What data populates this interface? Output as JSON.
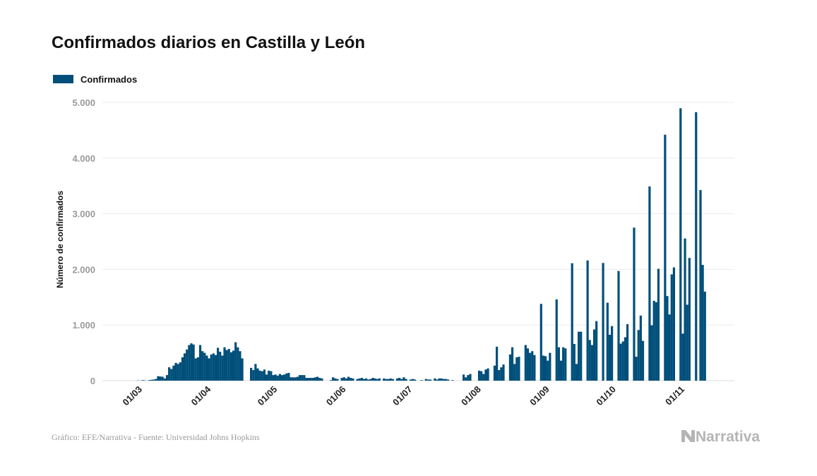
{
  "chart_data": {
    "type": "bar",
    "title": "Confirmados diarios en Castilla y León",
    "ylabel": "Número de confirmados",
    "xlabel": "",
    "legend": {
      "position": "top-left",
      "entries": [
        "Confirmados"
      ]
    },
    "series": [
      {
        "name": "Confirmados",
        "color": "#004f7a"
      }
    ],
    "xlim": [
      "2020-02-24",
      "2020-11-10"
    ],
    "ylim": [
      0,
      5000
    ],
    "grid": true,
    "y_ticks": [
      {
        "value": 0,
        "label": "0"
      },
      {
        "value": 1000,
        "label": "1.000"
      },
      {
        "value": 2000,
        "label": "2.000"
      },
      {
        "value": 3000,
        "label": "3.000"
      },
      {
        "value": 4000,
        "label": "4.000"
      },
      {
        "value": 5000,
        "label": "5.000"
      }
    ],
    "x_ticks": [
      {
        "date": "2020-03-01",
        "label": "01/03"
      },
      {
        "date": "2020-04-01",
        "label": "01/04"
      },
      {
        "date": "2020-05-01",
        "label": "01/05"
      },
      {
        "date": "2020-06-01",
        "label": "01/06"
      },
      {
        "date": "2020-07-01",
        "label": "01/07"
      },
      {
        "date": "2020-08-01",
        "label": "01/08"
      },
      {
        "date": "2020-09-01",
        "label": "01/09"
      },
      {
        "date": "2020-10-01",
        "label": "01/10"
      },
      {
        "date": "2020-11-01",
        "label": "01/11"
      }
    ],
    "daily_values": [
      0,
      0,
      0,
      0,
      5,
      0,
      10,
      5,
      0,
      10,
      15,
      20,
      30,
      80,
      75,
      70,
      40,
      100,
      240,
      210,
      270,
      320,
      300,
      330,
      420,
      490,
      560,
      640,
      670,
      650,
      400,
      420,
      640,
      530,
      500,
      450,
      400,
      470,
      490,
      460,
      590,
      520,
      450,
      600,
      550,
      570,
      510,
      540,
      690,
      600,
      530,
      400,
      0,
      0,
      0,
      230,
      190,
      300,
      220,
      180,
      170,
      200,
      110,
      180,
      170,
      100,
      110,
      90,
      120,
      100,
      110,
      130,
      140,
      60,
      60,
      60,
      70,
      100,
      100,
      100,
      50,
      50,
      50,
      50,
      60,
      70,
      50,
      40,
      0,
      0,
      0,
      10,
      60,
      40,
      30,
      0,
      50,
      60,
      40,
      70,
      50,
      40,
      0,
      30,
      40,
      50,
      30,
      40,
      20,
      30,
      50,
      40,
      30,
      40,
      0,
      40,
      30,
      30,
      40,
      30,
      0,
      40,
      50,
      30,
      60,
      30,
      0,
      20,
      30,
      20,
      0,
      0,
      10,
      0,
      30,
      20,
      20,
      0,
      40,
      20,
      40,
      40,
      30,
      30,
      20,
      0,
      10,
      0,
      0,
      0,
      0,
      110,
      60,
      100,
      120,
      0,
      0,
      0,
      180,
      170,
      120,
      200,
      220,
      0,
      0,
      270,
      610,
      190,
      240,
      290,
      0,
      0,
      470,
      600,
      300,
      420,
      430,
      0,
      0,
      640,
      580,
      500,
      530,
      460,
      0,
      0,
      1380,
      450,
      440,
      360,
      500,
      0,
      0,
      1460,
      600,
      360,
      600,
      580,
      0,
      0,
      2110,
      660,
      300,
      880,
      880,
      0,
      0,
      2160,
      730,
      640,
      920,
      1070,
      0,
      0,
      2115,
      0,
      1400,
      825,
      980,
      0,
      0,
      1970,
      665,
      705,
      780,
      1015,
      0,
      0,
      2750,
      430,
      910,
      1170,
      715,
      0,
      0,
      3490,
      995,
      1435,
      1410,
      2010,
      0,
      0,
      4420,
      1520,
      1190,
      1910,
      2035,
      0,
      0,
      4895,
      845,
      2555,
      1365,
      2205,
      0,
      0,
      4825,
      0,
      3425,
      2080,
      1600
    ]
  },
  "footer": {
    "source": "Gráfico: EFE/Narrativa - Fuente: Universidad Johns Hopkins",
    "logo": "Narrativa"
  }
}
